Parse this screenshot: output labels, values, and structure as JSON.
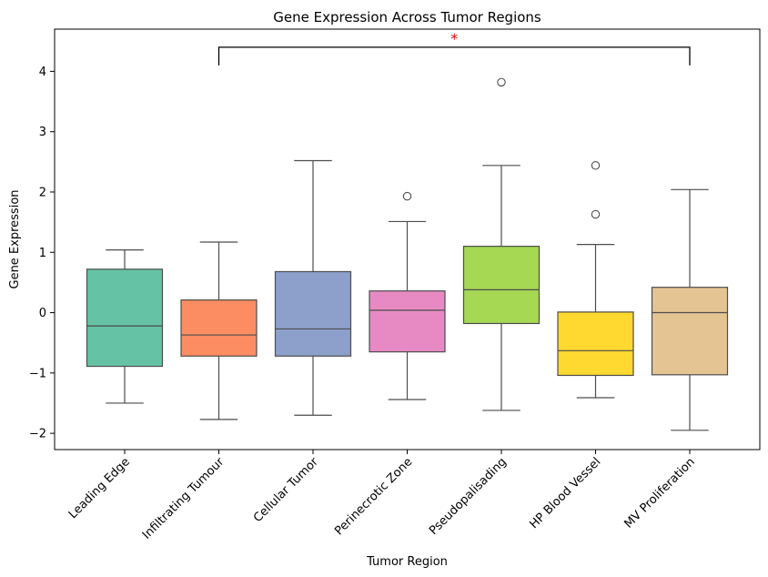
{
  "chart_data": {
    "type": "box",
    "title": "Gene Expression Across Tumor Regions",
    "xlabel": "Tumor Region",
    "ylabel": "Gene Expression",
    "ylim": [
      -2.27,
      4.7
    ],
    "yticks": [
      -2,
      -1,
      0,
      1,
      2,
      3,
      4
    ],
    "ytick_labels": [
      "−2",
      "−1",
      "0",
      "1",
      "2",
      "3",
      "4"
    ],
    "grid": false,
    "categories": [
      "Leading Edge",
      "Infiltrating Tumour",
      "Cellular Tumor",
      "Perinecrotic Zone",
      "Pseudopalisading",
      "HP Blood Vessel",
      "MV Proliferation"
    ],
    "boxes": [
      {
        "whisker_low": -1.5,
        "q1": -0.89,
        "median": -0.22,
        "q3": 0.72,
        "whisker_high": 1.04,
        "outliers": [],
        "color": "#66c2a5"
      },
      {
        "whisker_low": -1.77,
        "q1": -0.72,
        "median": -0.37,
        "q3": 0.21,
        "whisker_high": 1.17,
        "outliers": [],
        "color": "#fc8d62"
      },
      {
        "whisker_low": -1.7,
        "q1": -0.72,
        "median": -0.27,
        "q3": 0.68,
        "whisker_high": 2.52,
        "outliers": [],
        "color": "#8da0cb"
      },
      {
        "whisker_low": -1.44,
        "q1": -0.65,
        "median": 0.04,
        "q3": 0.36,
        "whisker_high": 1.51,
        "outliers": [
          1.93
        ],
        "color": "#e78ac3"
      },
      {
        "whisker_low": -1.62,
        "q1": -0.18,
        "median": 0.38,
        "q3": 1.1,
        "whisker_high": 2.44,
        "outliers": [
          3.82
        ],
        "color": "#a6d854"
      },
      {
        "whisker_low": -1.41,
        "q1": -1.04,
        "median": -0.63,
        "q3": 0.01,
        "whisker_high": 1.13,
        "outliers": [
          1.63,
          2.44
        ],
        "color": "#ffd92f"
      },
      {
        "whisker_low": -1.95,
        "q1": -1.03,
        "median": 0.0,
        "q3": 0.42,
        "whisker_high": 2.04,
        "outliers": [],
        "color": "#e5c494"
      }
    ],
    "annotation": {
      "from": "Infiltrating Tumour",
      "to": "MV Proliferation",
      "y": 4.4,
      "text": "*",
      "color": "#e00000"
    }
  }
}
